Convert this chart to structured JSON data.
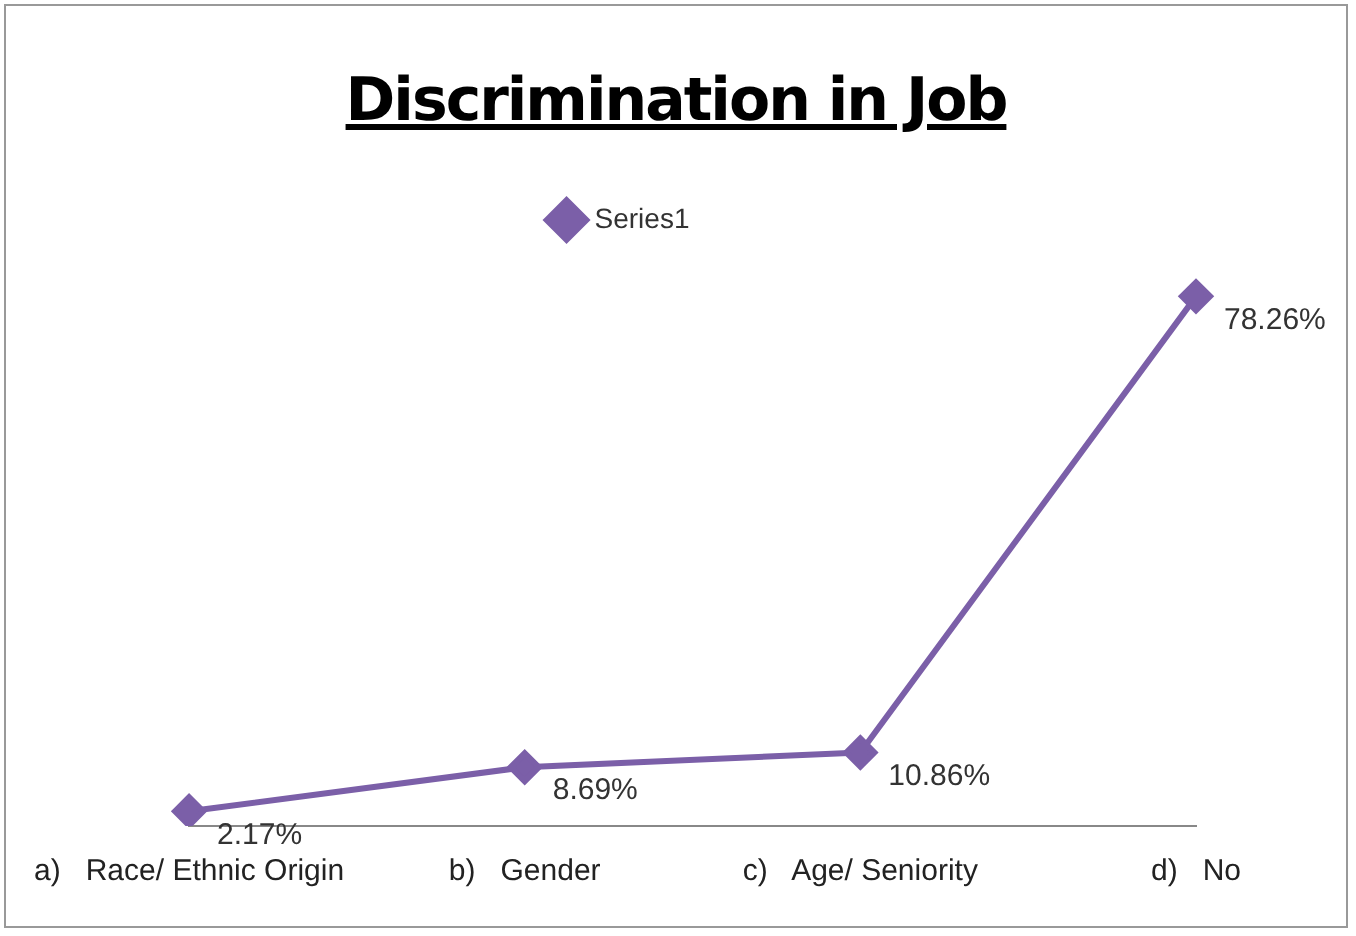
{
  "chart_data": {
    "type": "line",
    "title": "Discrimination in Job",
    "categories": [
      "a)   Race/ Ethnic Origin",
      "b)   Gender",
      "c)   Age/ Seniority",
      "d)   No"
    ],
    "series": [
      {
        "name": "Series1",
        "color": "#7b5fa8",
        "values": [
          2.17,
          8.69,
          10.86,
          78.26
        ],
        "value_labels": [
          "2.17%",
          "8.69%",
          "10.86%",
          "78.26%"
        ]
      }
    ],
    "marker": "diamond",
    "legend": "top",
    "grid": false
  }
}
